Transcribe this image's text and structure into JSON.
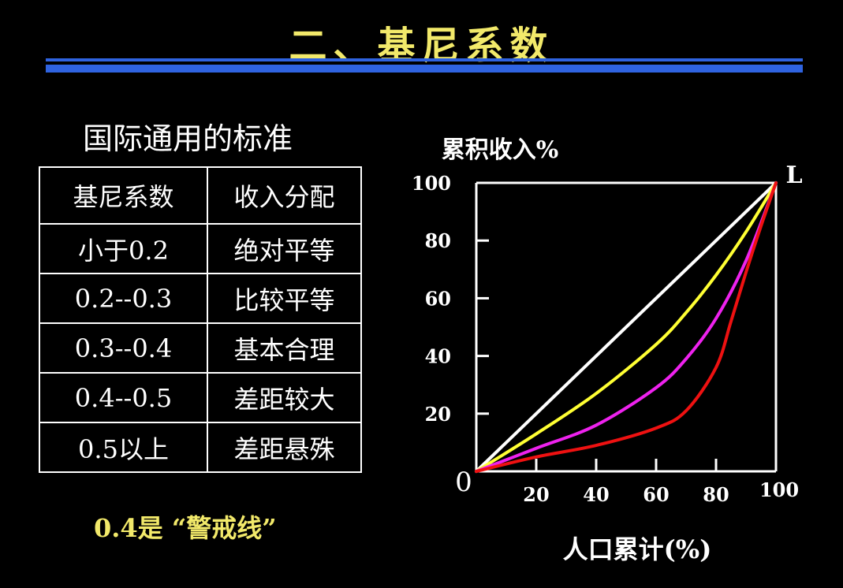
{
  "slide": {
    "title": "二、基尼系数"
  },
  "standard": {
    "subtitle": "国际通用的标准",
    "headers": [
      "基尼系数",
      "收入分配"
    ],
    "rows": [
      [
        "小于0.2",
        "绝对平等"
      ],
      [
        "0.2--0.3",
        "比较平等"
      ],
      [
        "0.3--0.4",
        "基本合理"
      ],
      [
        "0.4--0.5",
        "差距较大"
      ],
      [
        "0.5以上",
        "差距悬殊"
      ]
    ],
    "warning": "0.4是 “警戒线”"
  },
  "chart_data": {
    "type": "line",
    "title": "",
    "ylabel": "累积收入%",
    "xlabel": "人口累计(%)",
    "corner_label": "L",
    "origin_label": "0",
    "xlim": [
      0,
      100
    ],
    "ylim": [
      0,
      100
    ],
    "xticks": [
      20,
      40,
      60,
      80,
      100
    ],
    "yticks": [
      20,
      40,
      60,
      80,
      100
    ],
    "series": [
      {
        "name": "equality-line",
        "color": "#ffffff",
        "x": [
          0,
          100
        ],
        "y": [
          0,
          100
        ]
      },
      {
        "name": "yellow-curve",
        "color": "#ffff33",
        "x": [
          0,
          20,
          40,
          60,
          70,
          80,
          90,
          100
        ],
        "y": [
          0,
          13,
          27,
          44,
          55,
          68,
          83,
          100
        ]
      },
      {
        "name": "magenta-curve",
        "color": "#ee22ee",
        "x": [
          0,
          20,
          40,
          60,
          70,
          80,
          90,
          100
        ],
        "y": [
          0,
          8,
          16,
          29,
          39,
          53,
          73,
          100
        ]
      },
      {
        "name": "red-curve",
        "color": "#ee1111",
        "x": [
          0,
          20,
          40,
          60,
          70,
          80,
          85,
          90,
          95,
          100
        ],
        "y": [
          0,
          5,
          9,
          15,
          21,
          36,
          52,
          69,
          85,
          100
        ]
      }
    ]
  }
}
